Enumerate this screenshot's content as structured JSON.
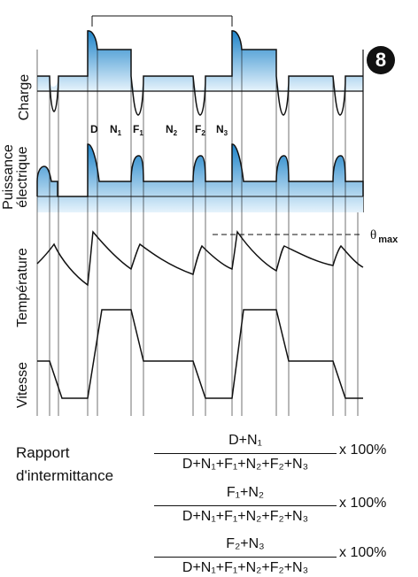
{
  "badge": "8",
  "row_labels": {
    "charge": "Charge",
    "power": "Puissance\nélectrique",
    "temperature": "Température",
    "speed": "Vitesse"
  },
  "segments": {
    "D": "D",
    "N1": "N",
    "N1_sub": "1",
    "F1": "F",
    "F1_sub": "1",
    "N2": "N",
    "N2_sub": "2",
    "F2": "F",
    "F2_sub": "2",
    "N3": "N",
    "N3_sub": "3"
  },
  "theta_max": {
    "symbol": "θ",
    "sub": "max"
  },
  "ratio": {
    "label_line1": "Rapport",
    "label_line2": "d'intermittance",
    "formulas": [
      {
        "numerator": "D+N₁",
        "denominator": "D+N₁+F₁+N₂+F₂+N₃",
        "multiplier": "x 100%"
      },
      {
        "numerator": "F₁+N₂",
        "denominator": "D+N₁+F₁+N₂+F₂+N₃",
        "multiplier": "x 100%"
      },
      {
        "numerator": "F₂+N₃",
        "denominator": "D+N₁+F₁+N₂+F₂+N₃",
        "multiplier": "x 100%"
      }
    ]
  },
  "colors": {
    "fill_top": "#1f84c9",
    "fill_bottom": "#e6f3fc",
    "line": "#111111"
  }
}
